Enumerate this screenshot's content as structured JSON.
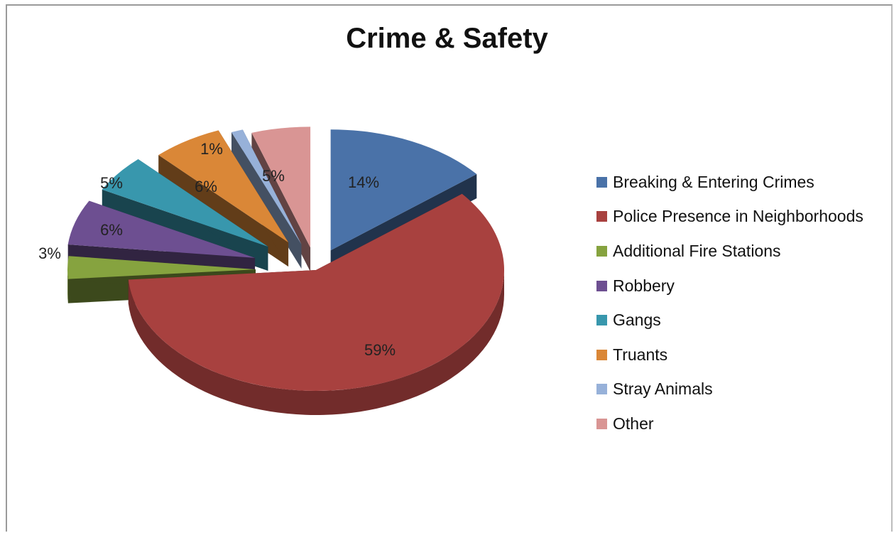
{
  "chart_data": {
    "type": "pie",
    "style": "3d-exploded",
    "title": "Crime & Safety",
    "legend_position": "right",
    "categories": [
      "Breaking & Entering Crimes",
      "Police Presence in Neighborhoods",
      "Additional Fire Stations",
      "Robbery",
      "Gangs",
      "Truants",
      "Stray Animals",
      "Other"
    ],
    "values": [
      14,
      59,
      3,
      6,
      5,
      6,
      1,
      5
    ],
    "labels": [
      "14%",
      "59%",
      "3%",
      "6%",
      "5%",
      "6%",
      "1%",
      "5%"
    ],
    "colors": [
      "#4a72a8",
      "#a8413f",
      "#86a33f",
      "#6d4f91",
      "#3897ad",
      "#da8737",
      "#97b1d9",
      "#d99594"
    ]
  }
}
